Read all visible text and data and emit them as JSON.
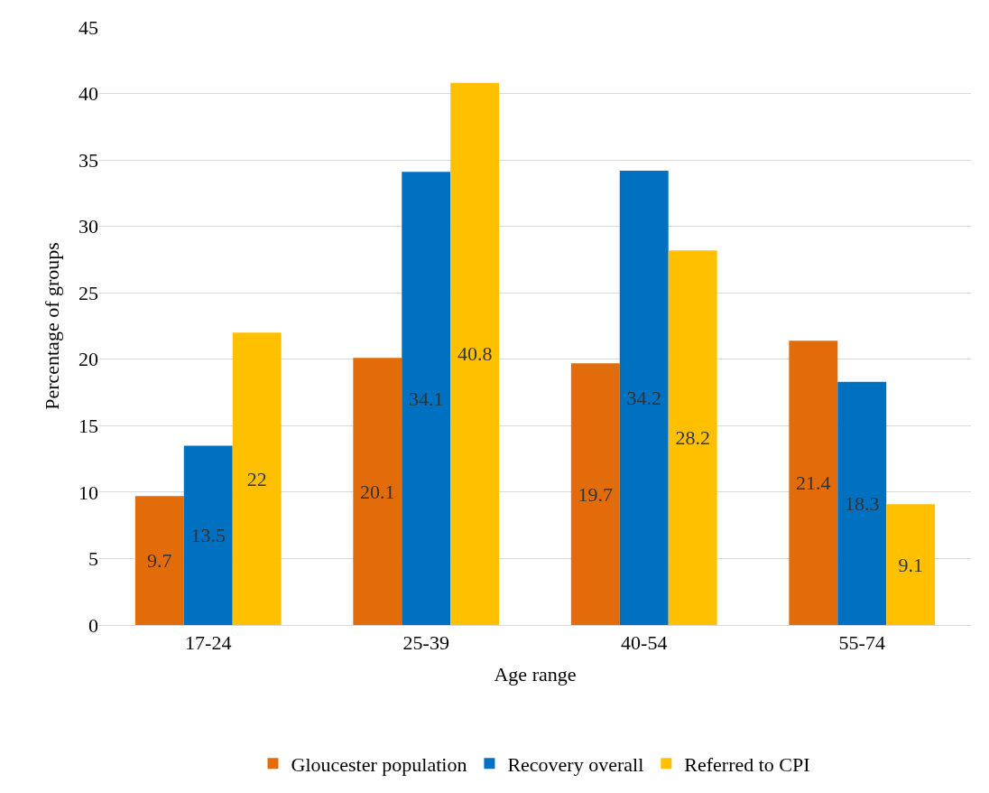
{
  "chart_data": {
    "type": "bar",
    "xlabel": "Age range",
    "ylabel": "Percentage of groups",
    "categories": [
      "17-24",
      "25-39",
      "40-54",
      "55-74"
    ],
    "series": [
      {
        "name": "Gloucester population",
        "color": "#e36c0a",
        "values": [
          9.7,
          20.1,
          19.7,
          21.4
        ]
      },
      {
        "name": "Recovery overall",
        "color": "#0070c0",
        "values": [
          13.5,
          34.1,
          34.2,
          18.3
        ]
      },
      {
        "name": "Referred to CPI",
        "color": "#ffc000",
        "values": [
          22,
          40.8,
          28.2,
          9.1
        ]
      }
    ],
    "ylim": [
      0,
      45
    ],
    "yticks": [
      0,
      5,
      10,
      15,
      20,
      25,
      30,
      35,
      40,
      45
    ],
    "grid": "y",
    "legend": "bottom",
    "data_labels": true
  }
}
